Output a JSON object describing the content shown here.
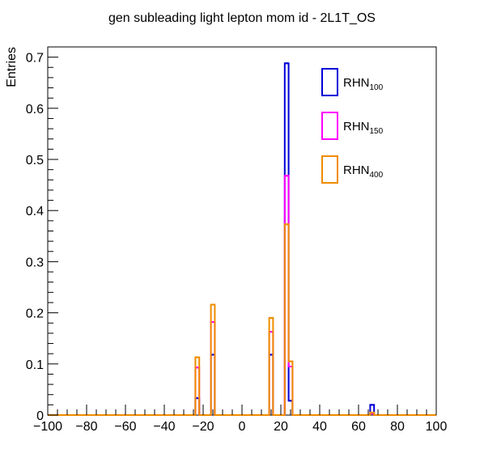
{
  "chart_data": {
    "type": "bar",
    "title": "gen subleading light lepton mom id - 2L1T_OS",
    "xlabel": "",
    "ylabel": "Entries",
    "xlim": [
      -100,
      100
    ],
    "ylim": [
      0,
      0.72
    ],
    "x_ticks": [
      -100,
      -80,
      -60,
      -40,
      -20,
      0,
      20,
      40,
      60,
      80,
      100
    ],
    "y_ticks": [
      0,
      0.1,
      0.2,
      0.3,
      0.4,
      0.5,
      0.6,
      0.7
    ],
    "x_tick_labels": [
      "−100",
      "−80",
      "−60",
      "−40",
      "−20",
      "0",
      "20",
      "40",
      "60",
      "80",
      "100"
    ],
    "y_tick_labels": [
      "0",
      "0.1",
      "0.2",
      "0.3",
      "0.4",
      "0.5",
      "0.6",
      "0.7"
    ],
    "grid": false,
    "legend_position": "top-right",
    "bin_edges": [
      -100,
      100
    ],
    "bin_count": 80,
    "series": [
      {
        "name": "RHN",
        "subscript": "100",
        "color": "#0000d7",
        "bins": [
          {
            "x0": -24,
            "x1": -22,
            "value": 0.033
          },
          {
            "x0": -16,
            "x1": -14,
            "value": 0.118
          },
          {
            "x0": 14,
            "x1": 16,
            "value": 0.118
          },
          {
            "x0": 22,
            "x1": 24,
            "value": 0.688
          },
          {
            "x0": 24,
            "x1": 26,
            "value": 0.028
          },
          {
            "x0": 66,
            "x1": 68,
            "value": 0.02
          }
        ]
      },
      {
        "name": "RHN",
        "subscript": "150",
        "color": "#ff00ff",
        "bins": [
          {
            "x0": -24,
            "x1": -22,
            "value": 0.093
          },
          {
            "x0": -16,
            "x1": -14,
            "value": 0.182
          },
          {
            "x0": 14,
            "x1": 16,
            "value": 0.163
          },
          {
            "x0": 22,
            "x1": 24,
            "value": 0.468
          },
          {
            "x0": 24,
            "x1": 26,
            "value": 0.095
          },
          {
            "x0": 66,
            "x1": 68,
            "value": 0.003
          }
        ]
      },
      {
        "name": "RHN",
        "subscript": "400",
        "color": "#f08c00",
        "bins": [
          {
            "x0": -24,
            "x1": -22,
            "value": 0.113
          },
          {
            "x0": -16,
            "x1": -14,
            "value": 0.216
          },
          {
            "x0": 14,
            "x1": 16,
            "value": 0.19
          },
          {
            "x0": 22,
            "x1": 24,
            "value": 0.373
          },
          {
            "x0": 24,
            "x1": 26,
            "value": 0.105
          },
          {
            "x0": 66,
            "x1": 68,
            "value": 0.005
          }
        ]
      }
    ]
  }
}
